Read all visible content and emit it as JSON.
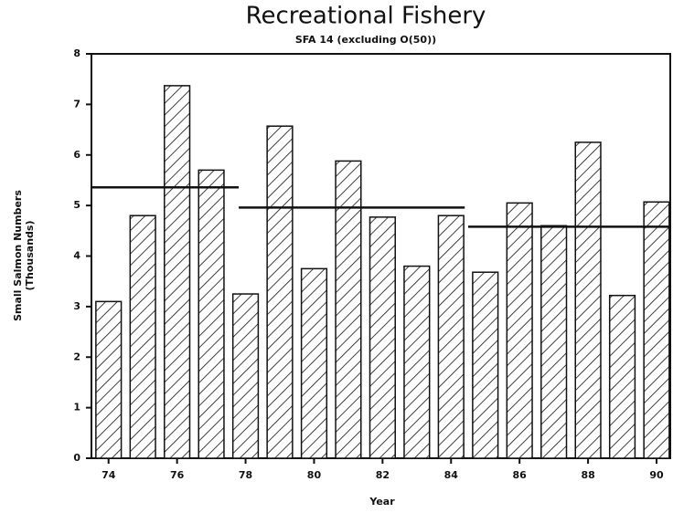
{
  "chart_data": {
    "type": "bar",
    "title": "Recreational Fishery",
    "subtitle": "SFA 14 (excluding O(50))",
    "xlabel": "Year",
    "ylabel": [
      "Small Salmon Numbers",
      "(Thousands)"
    ],
    "x": [
      74,
      75,
      76,
      77,
      78,
      79,
      80,
      81,
      82,
      83,
      84,
      85,
      86,
      87,
      88,
      89,
      90
    ],
    "values": [
      3.1,
      4.8,
      7.37,
      5.7,
      3.25,
      6.57,
      3.75,
      5.88,
      4.77,
      3.8,
      4.8,
      3.68,
      5.05,
      4.6,
      6.25,
      3.22,
      5.07
    ],
    "color": "#111111",
    "hatch": true,
    "xlim": [
      73.5,
      90.4
    ],
    "xticks": [
      74,
      76,
      78,
      80,
      82,
      84,
      86,
      88,
      90
    ],
    "ylim": [
      0,
      8
    ],
    "yticks": [
      0,
      1,
      2,
      3,
      4,
      5,
      6,
      7,
      8
    ],
    "reference_lines": [
      {
        "x": [
          73.5,
          77.8
        ],
        "value": 5.36
      },
      {
        "x": [
          77.8,
          84.4
        ],
        "value": 4.96
      },
      {
        "x": [
          84.5,
          90.4
        ],
        "value": 4.58
      }
    ]
  }
}
